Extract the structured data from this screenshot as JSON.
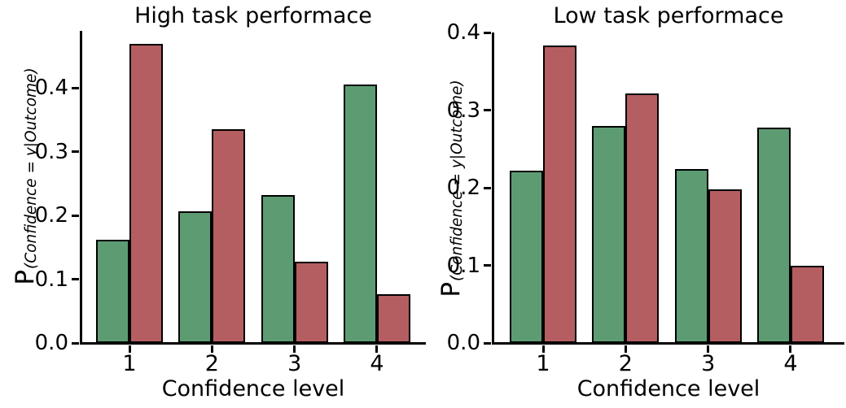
{
  "figure": {
    "background": "#ffffff",
    "text_color": "#000000",
    "edge_color": "#000000"
  },
  "chart_data": [
    {
      "type": "bar",
      "title": "High task performace",
      "xlabel": "Confidence level",
      "ylabel": "P(Confidence = y|Outcome)",
      "ylabel_main": "P",
      "ylabel_sub": "(Confidence = y|Outcome)",
      "categories": [
        "1",
        "2",
        "3",
        "4"
      ],
      "series": [
        {
          "name": "green",
          "color": "#5d9c72",
          "values": [
            0.162,
            0.207,
            0.232,
            0.405
          ]
        },
        {
          "name": "red",
          "color": "#b55e61",
          "values": [
            0.469,
            0.335,
            0.128,
            0.076
          ]
        }
      ],
      "yticks": [
        0.0,
        0.1,
        0.2,
        0.3,
        0.4
      ],
      "ytick_labels": [
        "0.0",
        "0.1",
        "0.2",
        "0.3",
        "0.4"
      ],
      "ylim": [
        0,
        0.49
      ],
      "grid": false,
      "legend": "none"
    },
    {
      "type": "bar",
      "title": "Low task performace",
      "xlabel": "Confidence level",
      "ylabel": "P(Confidence = y|Outcome)",
      "ylabel_main": "P",
      "ylabel_sub": "(Confidence = y|Outcome)",
      "categories": [
        "1",
        "2",
        "3",
        "4"
      ],
      "series": [
        {
          "name": "green",
          "color": "#5d9c72",
          "values": [
            0.222,
            0.28,
            0.224,
            0.277
          ]
        },
        {
          "name": "red",
          "color": "#b55e61",
          "values": [
            0.383,
            0.322,
            0.198,
            0.1
          ]
        }
      ],
      "yticks": [
        0.0,
        0.1,
        0.2,
        0.3,
        0.4
      ],
      "ytick_labels": [
        "0.0",
        "0.1",
        "0.2",
        "0.3",
        "0.4"
      ],
      "ylim": [
        0,
        0.4
      ],
      "grid": false,
      "legend": "none"
    }
  ]
}
